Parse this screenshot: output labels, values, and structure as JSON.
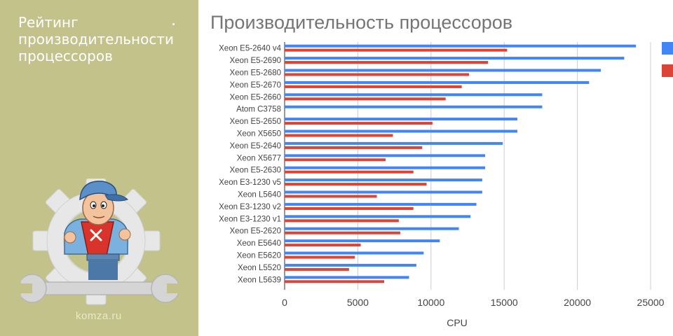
{
  "sidebar": {
    "title_lines": [
      "Рейтинг",
      "производительности",
      "процессоров"
    ],
    "watermark": "komza.ru"
  },
  "colors": {
    "panel": "#c2c28a",
    "series_1": "#4285f4",
    "series_2": "#db4437",
    "grid": "#cccccc",
    "label": "#444444",
    "title": "#757575"
  },
  "chart_data": {
    "type": "bar",
    "orientation": "horizontal",
    "title": "Производительность процессоров",
    "xlabel": "CPU",
    "ylabel": "",
    "xlim": [
      0,
      25000
    ],
    "x_ticks": [
      0,
      5000,
      10000,
      15000,
      20000,
      25000
    ],
    "grid": true,
    "legend_position": "right",
    "categories": [
      "Xeon E5-2640 v4",
      "Xeon E5-2690",
      "Xeon E5-2680",
      "Xeon E5-2670",
      "Xeon E5-2660",
      "Atom C3758",
      "Xeon E5-2650",
      "Xeon X5650",
      "Xeon E5-2640",
      "Xeon X5677",
      "Xeon E5-2630",
      "Xeon E3-1230 v5",
      "Xeon L5640",
      "Xeon E3-1230 v2",
      "Xeon E3-1230 v1",
      "Xeon E5-2620",
      "Xeon E5640",
      "Xeon E5620",
      "Xeon L5520",
      "Xeon L5639"
    ],
    "series": [
      {
        "values": [
          24000,
          23200,
          21600,
          20800,
          17600,
          17600,
          15900,
          15900,
          14900,
          13700,
          13700,
          13500,
          13500,
          13100,
          12700,
          11900,
          10600,
          9500,
          9000,
          8500
        ]
      },
      {
        "values": [
          15200,
          13900,
          12600,
          12100,
          11000,
          null,
          10100,
          7400,
          9400,
          6900,
          8800,
          9700,
          6300,
          8800,
          7800,
          7900,
          5200,
          4800,
          4400,
          6800
        ]
      }
    ]
  }
}
